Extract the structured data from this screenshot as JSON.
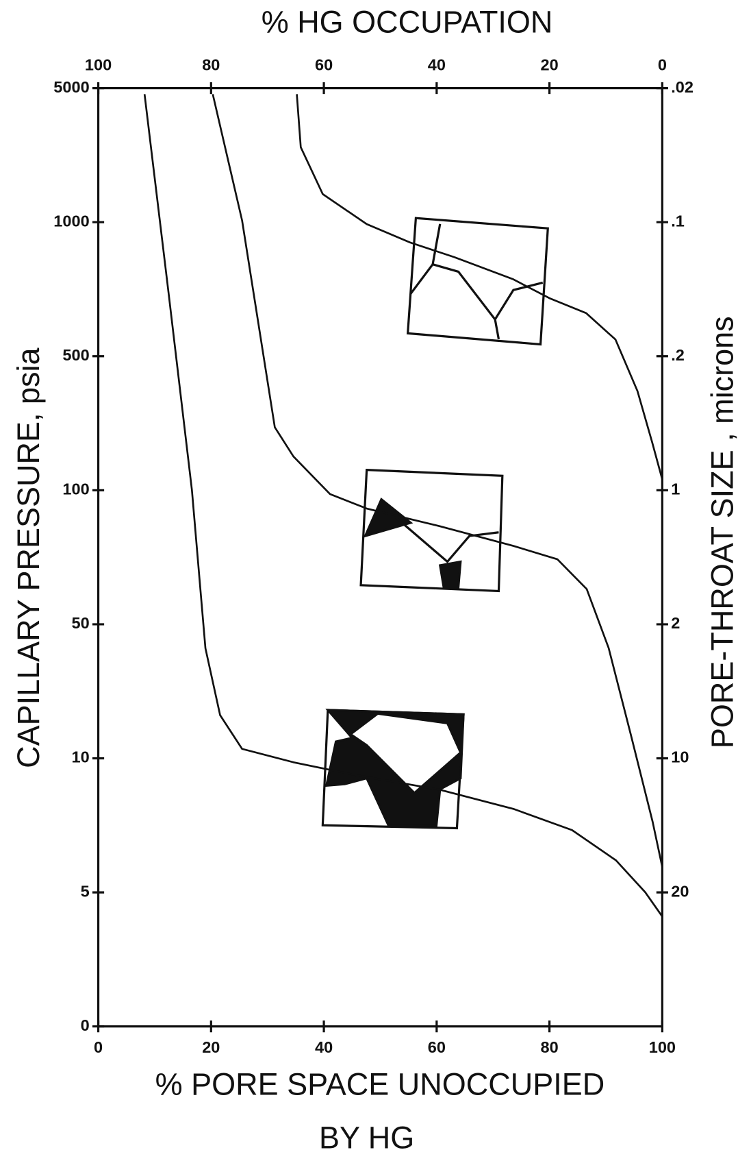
{
  "chart_data": {
    "type": "line",
    "title": "% HG OCCUPATION",
    "xlabel": [
      "% PORE SPACE UNOCCUPIED",
      "BY HG"
    ],
    "ylabel": "CAPILLARY PRESSURE, psia",
    "y2label": "PORE-THROAT SIZE , microns",
    "xlim": [
      0,
      100
    ],
    "xticks": [
      0,
      20,
      40,
      60,
      80,
      100
    ],
    "x2lim": [
      100,
      0
    ],
    "x2ticks": [
      100,
      80,
      60,
      40,
      20,
      0
    ],
    "ylim": [
      0,
      5000
    ],
    "yticks": [
      5000,
      1000,
      500,
      100,
      50,
      10,
      5,
      0
    ],
    "y2ticks": [
      {
        "value": 0.02,
        "label": ".02"
      },
      {
        "value": 0.1,
        "label": ".1"
      },
      {
        "value": 0.2,
        "label": ".2"
      },
      1,
      2,
      10,
      20
    ],
    "series": [
      {
        "color": "#111111",
        "x": [
          8.2,
          12.5,
          16.6,
          19,
          21.6,
          25.5,
          34.6,
          45,
          60.6,
          73.6,
          84,
          91.8,
          97,
          100
        ],
        "values": [
          4650,
          688,
          100,
          37.5,
          16.8,
          11.2,
          9.8,
          9.2,
          8.5,
          7.7,
          6.9,
          5.9,
          5.0,
          4.1
        ]
      },
      {
        "color": "#111111",
        "x": [
          20.3,
          25.5,
          31.3,
          34.6,
          41.1,
          47.6,
          60.6,
          73.6,
          81.4,
          86.6,
          90.5,
          94.4,
          98.3,
          100
        ],
        "values": [
          4650,
          1020,
          213,
          150,
          98,
          91,
          83,
          75,
          70,
          60,
          37.6,
          13.4,
          7.2,
          5.7
        ]
      },
      {
        "color": "#111111",
        "x": [
          35.2,
          35.9,
          39.8,
          47.6,
          55.3,
          63.1,
          73.5,
          80,
          86.5,
          91.7,
          95.6,
          98.2,
          100
        ],
        "values": [
          4650,
          2460,
          1400,
          990,
          900,
          835,
          745,
          675,
          625,
          545,
          329,
          178,
          114
        ]
      }
    ]
  }
}
